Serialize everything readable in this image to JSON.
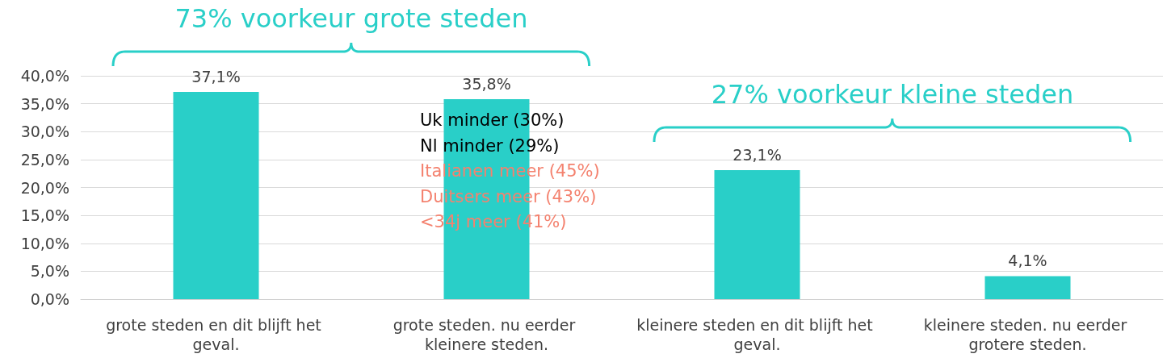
{
  "chart_data": {
    "type": "bar",
    "categories": [
      "grote steden en dit blijft het geval.",
      "grote steden. nu eerder kleinere steden.",
      "kleinere steden en dit blijft het geval.",
      "kleinere steden. nu eerder grotere steden."
    ],
    "values": [
      37.1,
      35.8,
      23.1,
      4.1
    ],
    "value_labels": [
      "37,1%",
      "35,8%",
      "23,1%",
      "4,1%"
    ],
    "color": "#29cfc8",
    "ylim": [
      0,
      40
    ],
    "yticks": [
      {
        "value": 0,
        "label": "0,0%"
      },
      {
        "value": 5,
        "label": "5,0%"
      },
      {
        "value": 10,
        "label": "10,0%"
      },
      {
        "value": 15,
        "label": "15,0%"
      },
      {
        "value": 20,
        "label": "20,0%"
      },
      {
        "value": 25,
        "label": "25,0%"
      },
      {
        "value": 30,
        "label": "30,0%"
      },
      {
        "value": 35,
        "label": "35,0%"
      },
      {
        "value": 40,
        "label": "40,0%"
      }
    ],
    "grid": "y",
    "annotations": [
      "73% voorkeur grote steden",
      "27% voorkeur kleine steden",
      "Uk minder (30%)",
      "Nl minder (29%)",
      "Italianen meer (45%)",
      "Duitsers meer (43%)",
      "<34j meer (41%)"
    ]
  }
}
